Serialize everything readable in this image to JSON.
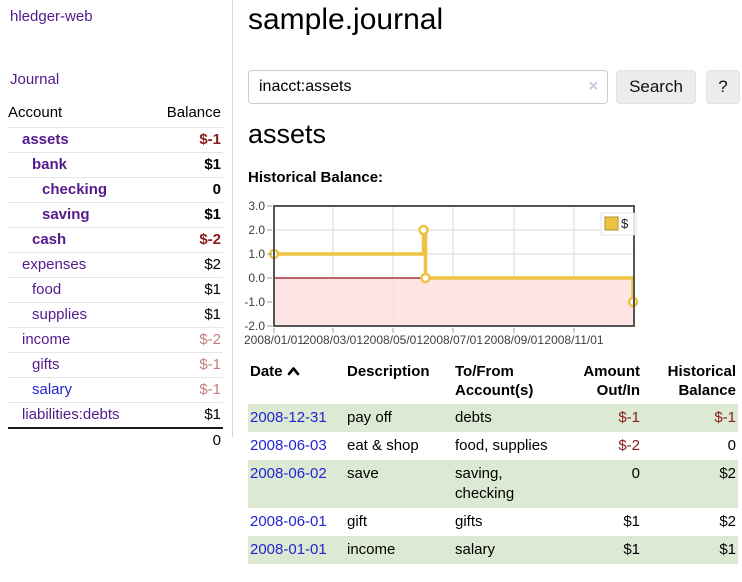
{
  "app": {
    "brand": "hledger-web",
    "nav": {
      "journal": "Journal"
    }
  },
  "sidebar": {
    "headers": {
      "account": "Account",
      "balance": "Balance"
    },
    "accounts": [
      {
        "name": "assets",
        "level": 1,
        "bold": true,
        "link_color": "purple",
        "balance": "$-1",
        "balance_style": "neg-strong"
      },
      {
        "name": "bank",
        "level": 2,
        "bold": true,
        "link_color": "purple",
        "balance": "$1",
        "balance_style": "pos-strong"
      },
      {
        "name": "checking",
        "level": 3,
        "bold": true,
        "link_color": "purple",
        "balance": "0",
        "balance_style": "pos-strong"
      },
      {
        "name": "saving",
        "level": 3,
        "bold": true,
        "link_color": "purple",
        "balance": "$1",
        "balance_style": "pos-strong"
      },
      {
        "name": "cash",
        "level": 2,
        "bold": true,
        "link_color": "purple",
        "balance": "$-2",
        "balance_style": "neg-strong"
      },
      {
        "name": "expenses",
        "level": 1,
        "bold": false,
        "link_color": "purple",
        "balance": "$2",
        "balance_style": "plain"
      },
      {
        "name": "food",
        "level": 2,
        "bold": false,
        "link_color": "purple",
        "balance": "$1",
        "balance_style": "plain"
      },
      {
        "name": "supplies",
        "level": 2,
        "bold": false,
        "link_color": "purple",
        "balance": "$1",
        "balance_style": "plain"
      },
      {
        "name": "income",
        "level": 1,
        "bold": false,
        "link_color": "purple",
        "balance": "$-2",
        "balance_style": "neg-soft"
      },
      {
        "name": "gifts",
        "level": 2,
        "bold": false,
        "link_color": "purple",
        "balance": "$-1",
        "balance_style": "neg-soft"
      },
      {
        "name": "salary",
        "level": 2,
        "bold": false,
        "link_color": "blue",
        "balance": "$-1",
        "balance_style": "neg-soft"
      },
      {
        "name": "liabilities:debts",
        "level": 1,
        "bold": false,
        "link_color": "purple",
        "balance": "$1",
        "balance_style": "plain"
      }
    ],
    "total": "0"
  },
  "main": {
    "title": "sample.journal",
    "search": {
      "value": "inacct:assets",
      "clear_icon": "×",
      "search_label": "Search",
      "help_label": "?"
    },
    "account_title": "assets",
    "chart_label": "Historical Balance:",
    "register": {
      "headers": [
        "Date",
        "Description",
        "To/From Account(s)",
        "Amount Out/In",
        "Historical Balance"
      ],
      "sort": {
        "column": "Date",
        "direction": "asc"
      },
      "rows": [
        {
          "date": "2008-12-31",
          "description": "pay off",
          "accounts": "debts",
          "amount": "$-1",
          "amount_style": "neg",
          "balance": "$-1",
          "balance_style": "neg"
        },
        {
          "date": "2008-06-03",
          "description": "eat & shop",
          "accounts": "food, supplies",
          "amount": "$-2",
          "amount_style": "neg",
          "balance": "0",
          "balance_style": "plain"
        },
        {
          "date": "2008-06-02",
          "description": "save",
          "accounts": "saving, checking",
          "amount": "0",
          "amount_style": "plain",
          "balance": "$2",
          "balance_style": "plain"
        },
        {
          "date": "2008-06-01",
          "description": "gift",
          "accounts": "gifts",
          "amount": "$1",
          "amount_style": "plain",
          "balance": "$2",
          "balance_style": "plain"
        },
        {
          "date": "2008-01-01",
          "description": "income",
          "accounts": "salary",
          "amount": "$1",
          "amount_style": "plain",
          "balance": "$1",
          "balance_style": "plain"
        }
      ]
    }
  },
  "chart_data": {
    "type": "line",
    "step": true,
    "title": "Historical Balance:",
    "series": [
      {
        "name": "$",
        "points": [
          [
            "2008-01-01",
            1
          ],
          [
            "2008-06-01",
            2
          ],
          [
            "2008-06-03",
            0
          ],
          [
            "2008-12-31",
            -1
          ]
        ]
      }
    ],
    "xlim": [
      "2008-01-01",
      "2009-01-01"
    ],
    "ylim": [
      -2,
      3
    ],
    "yticks": [
      3,
      2,
      1,
      0,
      -1,
      -2
    ],
    "xticks": [
      {
        "date": "2008-01-01",
        "label": "2008/01/01"
      },
      {
        "date": "2008-03-01",
        "label": "2008/03/01"
      },
      {
        "date": "2008-05-01",
        "label": "2008/05/01"
      },
      {
        "date": "2008-07-01",
        "label": "2008/07/01"
      },
      {
        "date": "2008-09-01",
        "label": "2008/09/01"
      },
      {
        "date": "2008-11-01",
        "label": "2008/11/01"
      }
    ],
    "legend": {
      "label": "$",
      "position": "top-right"
    },
    "negative_region": true,
    "grid": true,
    "colors": {
      "series": "#edc240",
      "marker_fill": "#ffffff",
      "negative_fill": "#fcdee0",
      "zero_line": "#8f1010",
      "border": "#545454",
      "gridline": "#dadada"
    }
  },
  "colors": {
    "link_purple": "#551a8b",
    "link_blue": "#2323d3",
    "negative_strong": "#8b1a1a",
    "negative_soft": "#c47e7e",
    "row_green": "#dcead3",
    "button_bg": "#ececec",
    "divider": "#d6d2de"
  }
}
